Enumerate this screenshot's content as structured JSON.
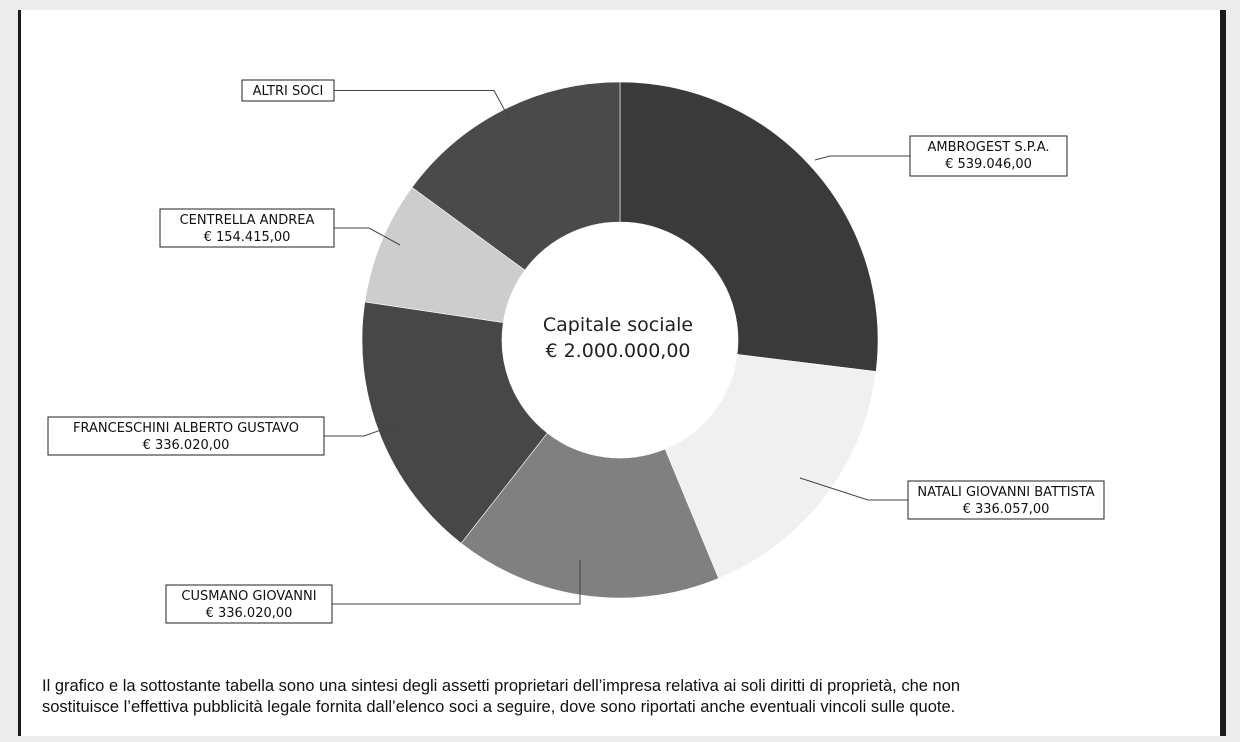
{
  "chart_data": {
    "type": "pie",
    "center_label": [
      "Capitale sociale",
      "€ 2.000.000,00"
    ],
    "slices": [
      {
        "name": "AMBROGEST S.P.A.",
        "value_label": "€ 539.046,00",
        "value": 539046,
        "color": "#3a3a3a"
      },
      {
        "name": "NATALI GIOVANNI BATTISTA",
        "value_label": "€ 336.057,00",
        "value": 336057,
        "color": "#f0f0f0"
      },
      {
        "name": "CUSMANO GIOVANNI",
        "value_label": "€ 336.020,00",
        "value": 336020,
        "color": "#808080"
      },
      {
        "name": "FRANCESCHINI ALBERTO GUSTAVO",
        "value_label": "€ 336.020,00",
        "value": 336020,
        "color": "#474747"
      },
      {
        "name": "CENTRELLA ANDREA",
        "value_label": "€ 154.415,00",
        "value": 154415,
        "color": "#cdcdcd"
      },
      {
        "name": "ALTRI SOCI",
        "value_label": "",
        "value": 298442,
        "color": "#4a4a4a"
      }
    ]
  },
  "note": {
    "line1": "Il grafico e la sottostante tabella sono una sintesi degli assetti proprietari dell’impresa relativa ai soli diritti di proprietà, che non",
    "line2": "sostituisce l’effettiva pubblicità legale fornita dall’elenco soci a seguire, dove sono riportati anche eventuali vincoli sulle quote."
  }
}
